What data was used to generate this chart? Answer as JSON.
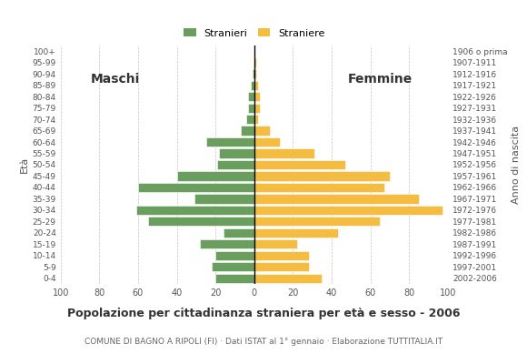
{
  "age_groups": [
    "0-4",
    "5-9",
    "10-14",
    "15-19",
    "20-24",
    "25-29",
    "30-34",
    "35-39",
    "40-44",
    "45-49",
    "50-54",
    "55-59",
    "60-64",
    "65-69",
    "70-74",
    "75-79",
    "80-84",
    "85-89",
    "90-94",
    "95-99",
    "100+"
  ],
  "birth_years": [
    "2002-2006",
    "1997-2001",
    "1992-1996",
    "1987-1991",
    "1982-1986",
    "1977-1981",
    "1972-1976",
    "1967-1971",
    "1962-1966",
    "1957-1961",
    "1952-1956",
    "1947-1951",
    "1942-1946",
    "1937-1941",
    "1932-1936",
    "1927-1931",
    "1922-1926",
    "1917-1921",
    "1912-1916",
    "1907-1911",
    "1906 o prima"
  ],
  "males": [
    20,
    22,
    20,
    28,
    16,
    55,
    61,
    31,
    60,
    40,
    19,
    18,
    25,
    7,
    4,
    3,
    3,
    2,
    1,
    0,
    0
  ],
  "females": [
    35,
    28,
    28,
    22,
    43,
    65,
    97,
    85,
    67,
    70,
    47,
    31,
    13,
    8,
    2,
    3,
    3,
    2,
    1,
    1,
    0
  ],
  "male_color": "#6a9e5e",
  "female_color": "#f5bc42",
  "bar_edge_color": "white",
  "xlim": 100,
  "grid_color": "#aaaaaa",
  "background_color": "#ffffff",
  "title": "Popolazione per cittadinanza straniera per età e sesso - 2006",
  "subtitle": "COMUNE DI BAGNO A RIPOLI (FI) · Dati ISTAT al 1° gennaio · Elaborazione TUTTITALIA.IT",
  "legend_label_male": "Stranieri",
  "legend_label_female": "Straniere",
  "ylabel_left": "Età",
  "ylabel_right": "Anno di nascita",
  "label_maschi": "Maschi",
  "label_femmine": "Femmine"
}
